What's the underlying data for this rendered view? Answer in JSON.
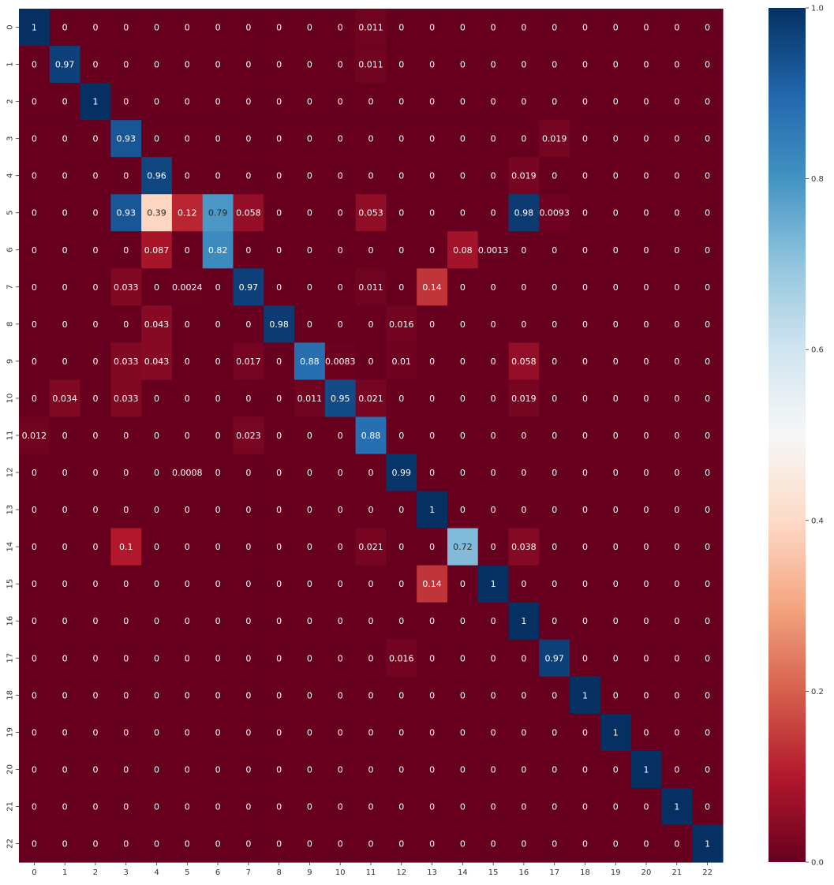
{
  "chart_data": {
    "type": "heatmap",
    "title": "",
    "xlabel": "",
    "ylabel": "",
    "x_ticks": [
      "0",
      "1",
      "2",
      "3",
      "4",
      "5",
      "6",
      "7",
      "8",
      "9",
      "10",
      "11",
      "12",
      "13",
      "14",
      "15",
      "16",
      "17",
      "18",
      "19",
      "20",
      "21",
      "22"
    ],
    "y_ticks": [
      "0",
      "1",
      "2",
      "3",
      "4",
      "5",
      "6",
      "7",
      "8",
      "9",
      "10",
      "11",
      "12",
      "13",
      "14",
      "15",
      "16",
      "17",
      "18",
      "19",
      "20",
      "21",
      "22"
    ],
    "colormap": "RdBu",
    "vmin": 0,
    "vmax": 1,
    "colorbar_ticks": [
      "0.0",
      "0.2",
      "0.4",
      "0.6",
      "0.8",
      "1.0"
    ],
    "annotations": true,
    "rows": [
      [
        "1",
        "0",
        "0",
        "0",
        "0",
        "0",
        "0",
        "0",
        "0",
        "0",
        "0",
        "0.011",
        "0",
        "0",
        "0",
        "0",
        "0",
        "0",
        "0",
        "0",
        "0",
        "0",
        "0"
      ],
      [
        "0",
        "0.97",
        "0",
        "0",
        "0",
        "0",
        "0",
        "0",
        "0",
        "0",
        "0",
        "0.011",
        "0",
        "0",
        "0",
        "0",
        "0",
        "0",
        "0",
        "0",
        "0",
        "0",
        "0"
      ],
      [
        "0",
        "0",
        "1",
        "0",
        "0",
        "0",
        "0",
        "0",
        "0",
        "0",
        "0",
        "0",
        "0",
        "0",
        "0",
        "0",
        "0",
        "0",
        "0",
        "0",
        "0",
        "0",
        "0"
      ],
      [
        "0",
        "0",
        "0",
        "0.93",
        "0",
        "0",
        "0",
        "0",
        "0",
        "0",
        "0",
        "0",
        "0",
        "0",
        "0",
        "0",
        "0",
        "0.019",
        "0",
        "0",
        "0",
        "0",
        "0"
      ],
      [
        "0",
        "0",
        "0",
        "0",
        "0.96",
        "0",
        "0",
        "0",
        "0",
        "0",
        "0",
        "0",
        "0",
        "0",
        "0",
        "0",
        "0.019",
        "0",
        "0",
        "0",
        "0",
        "0",
        "0"
      ],
      [
        "0",
        "0",
        "0",
        "0.93",
        "0.39",
        "0.12",
        "0.79",
        "0.058",
        "0",
        "0",
        "0",
        "0.053",
        "0",
        "0",
        "0",
        "0",
        "0.98",
        "0.0093",
        "0",
        "0",
        "0",
        "0",
        "0"
      ],
      [
        "0",
        "0",
        "0",
        "0",
        "0.087",
        "0",
        "0.82",
        "0",
        "0",
        "0",
        "0",
        "0",
        "0",
        "0",
        "0.08",
        "0.0013",
        "0",
        "0",
        "0",
        "0",
        "0",
        "0",
        "0"
      ],
      [
        "0",
        "0",
        "0",
        "0.033",
        "0",
        "0.0024",
        "0",
        "0.97",
        "0",
        "0",
        "0",
        "0.011",
        "0",
        "0.14",
        "0",
        "0",
        "0",
        "0",
        "0",
        "0",
        "0",
        "0",
        "0"
      ],
      [
        "0",
        "0",
        "0",
        "0",
        "0.043",
        "0",
        "0",
        "0",
        "0.98",
        "0",
        "0",
        "0",
        "0.016",
        "0",
        "0",
        "0",
        "0",
        "0",
        "0",
        "0",
        "0",
        "0",
        "0"
      ],
      [
        "0",
        "0",
        "0",
        "0.033",
        "0.043",
        "0",
        "0",
        "0.017",
        "0",
        "0.88",
        "0.0083",
        "0",
        "0.01",
        "0",
        "0",
        "0",
        "0.058",
        "0",
        "0",
        "0",
        "0",
        "0",
        "0"
      ],
      [
        "0",
        "0.034",
        "0",
        "0.033",
        "0",
        "0",
        "0",
        "0",
        "0",
        "0.011",
        "0.95",
        "0.021",
        "0",
        "0",
        "0",
        "0",
        "0.019",
        "0",
        "0",
        "0",
        "0",
        "0",
        "0"
      ],
      [
        "0.012",
        "0",
        "0",
        "0",
        "0",
        "0",
        "0",
        "0.023",
        "0",
        "0",
        "0",
        "0.88",
        "0",
        "0",
        "0",
        "0",
        "0",
        "0",
        "0",
        "0",
        "0",
        "0",
        "0"
      ],
      [
        "0",
        "0",
        "0",
        "0",
        "0",
        "0.0008",
        "0",
        "0",
        "0",
        "0",
        "0",
        "0",
        "0.99",
        "0",
        "0",
        "0",
        "0",
        "0",
        "0",
        "0",
        "0",
        "0",
        "0"
      ],
      [
        "0",
        "0",
        "0",
        "0",
        "0",
        "0",
        "0",
        "0",
        "0",
        "0",
        "0",
        "0",
        "0",
        "1",
        "0",
        "0",
        "0",
        "0",
        "0",
        "0",
        "0",
        "0",
        "0"
      ],
      [
        "0",
        "0",
        "0",
        "0.1",
        "0",
        "0",
        "0",
        "0",
        "0",
        "0",
        "0",
        "0.021",
        "0",
        "0",
        "0.72",
        "0",
        "0.038",
        "0",
        "0",
        "0",
        "0",
        "0",
        "0"
      ],
      [
        "0",
        "0",
        "0",
        "0",
        "0",
        "0",
        "0",
        "0",
        "0",
        "0",
        "0",
        "0",
        "0",
        "0.14",
        "0",
        "1",
        "0",
        "0",
        "0",
        "0",
        "0",
        "0",
        "0"
      ],
      [
        "0",
        "0",
        "0",
        "0",
        "0",
        "0",
        "0",
        "0",
        "0",
        "0",
        "0",
        "0",
        "0",
        "0",
        "0",
        "0",
        "1",
        "0",
        "0",
        "0",
        "0",
        "0",
        "0"
      ],
      [
        "0",
        "0",
        "0",
        "0",
        "0",
        "0",
        "0",
        "0",
        "0",
        "0",
        "0",
        "0",
        "0.016",
        "0",
        "0",
        "0",
        "0",
        "0.97",
        "0",
        "0",
        "0",
        "0",
        "0"
      ],
      [
        "0",
        "0",
        "0",
        "0",
        "0",
        "0",
        "0",
        "0",
        "0",
        "0",
        "0",
        "0",
        "0",
        "0",
        "0",
        "0",
        "0",
        "0",
        "1",
        "0",
        "0",
        "0",
        "0"
      ],
      [
        "0",
        "0",
        "0",
        "0",
        "0",
        "0",
        "0",
        "0",
        "0",
        "0",
        "0",
        "0",
        "0",
        "0",
        "0",
        "0",
        "0",
        "0",
        "0",
        "1",
        "0",
        "0",
        "0"
      ],
      [
        "0",
        "0",
        "0",
        "0",
        "0",
        "0",
        "0",
        "0",
        "0",
        "0",
        "0",
        "0",
        "0",
        "0",
        "0",
        "0",
        "0",
        "0",
        "0",
        "0",
        "1",
        "0",
        "0"
      ],
      [
        "0",
        "0",
        "0",
        "0",
        "0",
        "0",
        "0",
        "0",
        "0",
        "0",
        "0",
        "0",
        "0",
        "0",
        "0",
        "0",
        "0",
        "0",
        "0",
        "0",
        "0",
        "1",
        "0"
      ],
      [
        "0",
        "0",
        "0",
        "0",
        "0",
        "0",
        "0",
        "0",
        "0",
        "0",
        "0",
        "0",
        "0",
        "0",
        "0",
        "0",
        "0",
        "0",
        "0",
        "0",
        "0",
        "0",
        "1"
      ]
    ]
  }
}
